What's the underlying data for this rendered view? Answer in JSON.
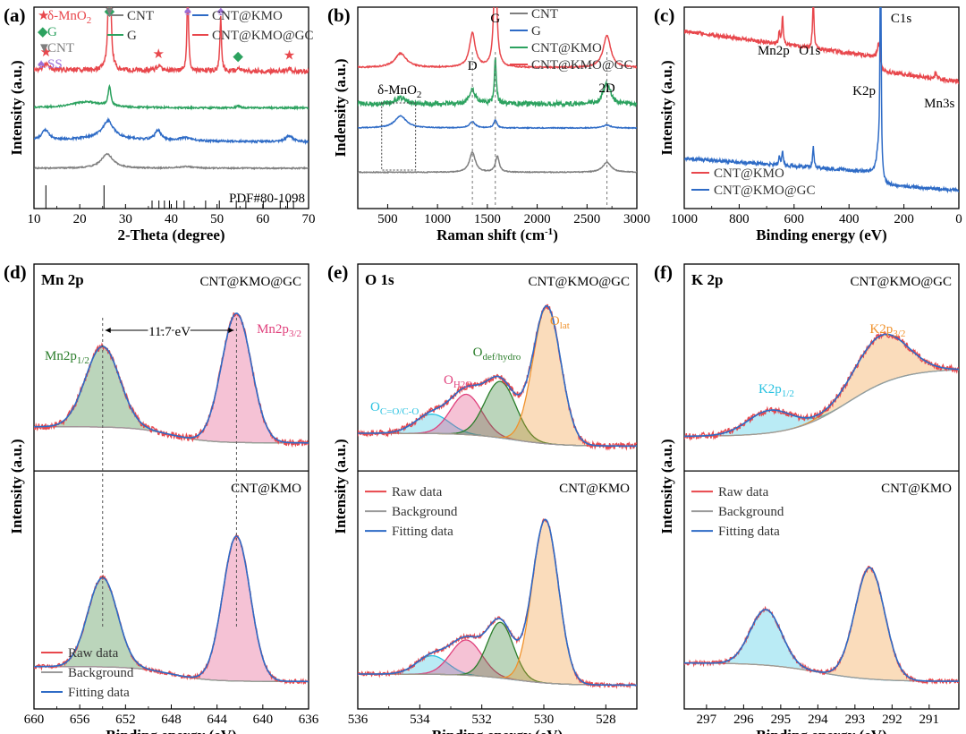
{
  "chart_data": [
    {
      "id": "a",
      "panel_label": "(a)",
      "type": "line",
      "title": "",
      "xlabel": "2-Theta (degree)",
      "ylabel": "Intensity (a.u.)",
      "xlim": [
        10,
        70
      ],
      "xticks": [
        10,
        20,
        30,
        40,
        50,
        60,
        70
      ],
      "legend": [
        {
          "name": "CNT",
          "color": "#7f7f7f"
        },
        {
          "name": "CNT@KMO",
          "color": "#2e6bc6"
        },
        {
          "name": "G",
          "color": "#2ca25f"
        },
        {
          "name": "CNT@KMO@GC",
          "color": "#e8474c"
        }
      ],
      "marker_legend": [
        {
          "symbol": "★",
          "label": "δ-MnO",
          "sub": "2",
          "color": "#e8474c"
        },
        {
          "symbol": "◆",
          "label": "G",
          "sub": "",
          "color": "#2ca25f"
        },
        {
          "symbol": "▼",
          "label": "CNT",
          "sub": "",
          "color": "#7f7f7f"
        },
        {
          "symbol": "♠",
          "label": "SS",
          "sub": "",
          "color": "#9b6fd6"
        }
      ],
      "reference_label": "PDF#80-1098",
      "reference_lines": [
        12.6,
        25.3,
        35.8,
        37.3,
        38.5,
        39.6,
        41.2,
        42.8,
        47.5,
        50.5,
        54.2,
        56.3,
        60.1,
        63.8,
        65.4,
        66.7
      ],
      "peak_markers": [
        {
          "x": 12.6,
          "trace": "CNT@KMO@GC",
          "symbol": "★"
        },
        {
          "x": 26.5,
          "trace": "CNT@KMO@GC",
          "symbol": "◆"
        },
        {
          "x": 26.5,
          "trace": "CNT@KMO@GC",
          "symbol": "▼"
        },
        {
          "x": 37.2,
          "trace": "CNT@KMO@GC",
          "symbol": "★"
        },
        {
          "x": 43.6,
          "trace": "CNT@KMO@GC",
          "symbol": "♠"
        },
        {
          "x": 50.8,
          "trace": "CNT@KMO@GC",
          "symbol": "♠"
        },
        {
          "x": 54.6,
          "trace": "CNT@KMO@GC",
          "symbol": "◆"
        },
        {
          "x": 65.8,
          "trace": "CNT@KMO@GC",
          "symbol": "★"
        }
      ],
      "series": [
        {
          "name": "CNT@KMO@GC",
          "color": "#e8474c",
          "offset": 0.66,
          "baseline": 0.03,
          "slope": -0.02,
          "noise": 0.012,
          "peaks": [
            [
              12.6,
              0.03,
              0.6
            ],
            [
              26.5,
              0.9,
              0.25
            ],
            [
              37.2,
              0.02,
              0.5
            ],
            [
              43.6,
              0.42,
              0.2
            ],
            [
              50.8,
              0.27,
              0.2
            ],
            [
              54.6,
              0.01,
              0.4
            ],
            [
              65.8,
              0.015,
              0.6
            ]
          ]
        },
        {
          "name": "G",
          "color": "#2ca25f",
          "offset": 0.5,
          "baseline": 0.0,
          "slope": 0.0,
          "noise": 0.004,
          "peaks": [
            [
              21.5,
              0.03,
              4.0
            ],
            [
              26.5,
              0.1,
              0.35
            ],
            [
              54.6,
              0.01,
              0.4
            ]
          ]
        },
        {
          "name": "CNT@KMO",
          "color": "#2e6bc6",
          "offset": 0.34,
          "baseline": 0.0,
          "slope": -0.02,
          "noise": 0.005,
          "peaks": [
            [
              12.5,
              0.05,
              0.9
            ],
            [
              26.2,
              0.07,
              1.2
            ],
            [
              25.8,
              0.03,
              4.0
            ],
            [
              37.1,
              0.05,
              0.8
            ],
            [
              43.0,
              0.015,
              1.5
            ],
            [
              65.8,
              0.03,
              1.0
            ]
          ]
        },
        {
          "name": "CNT",
          "color": "#7f7f7f",
          "offset": 0.2,
          "baseline": 0.0,
          "slope": 0.0,
          "noise": 0.003,
          "peaks": [
            [
              26.0,
              0.07,
              1.6
            ],
            [
              43.2,
              0.008,
              2.0
            ]
          ]
        }
      ]
    },
    {
      "id": "b",
      "panel_label": "(b)",
      "type": "line",
      "title": "",
      "xlabel": "Raman shift (cm⁻¹)",
      "ylabel": "Indensity (a.u.)",
      "xlim": [
        200,
        3000
      ],
      "xticks": [
        500,
        1000,
        1500,
        2000,
        2500,
        3000
      ],
      "legend": [
        {
          "name": "CNT",
          "color": "#7f7f7f"
        },
        {
          "name": "G",
          "color": "#2e6bc6"
        },
        {
          "name": "CNT@KMO",
          "color": "#2ca25f"
        },
        {
          "name": "CNT@KMO@GC",
          "color": "#e8474c"
        }
      ],
      "band_labels": [
        {
          "text": "δ-MnO",
          "sub": "2",
          "x": 620
        },
        {
          "text": "D",
          "sub": "",
          "x": 1350
        },
        {
          "text": "G",
          "sub": "",
          "x": 1580
        },
        {
          "text": "2D",
          "sub": "",
          "x": 2700
        }
      ],
      "series": [
        {
          "name": "CNT@KMO@GC",
          "color": "#e8474c",
          "offset": 0.7,
          "baseline": 0.0,
          "slope": 0.0,
          "noise": 0.003,
          "peaks": [
            [
              630,
              0.07,
              70
            ],
            [
              1350,
              0.17,
              35
            ],
            [
              1580,
              0.55,
              18
            ],
            [
              2700,
              0.16,
              45
            ]
          ]
        },
        {
          "name": "CNT@KMO",
          "color": "#2ca25f",
          "offset": 0.52,
          "baseline": 0.0,
          "slope": 0.0,
          "noise": 0.012,
          "peaks": [
            [
              630,
              0.03,
              70
            ],
            [
              1350,
              0.07,
              35
            ],
            [
              1580,
              0.22,
              12
            ],
            [
              2700,
              0.1,
              45
            ]
          ]
        },
        {
          "name": "G",
          "color": "#2e6bc6",
          "offset": 0.4,
          "baseline": 0.0,
          "slope": 0.0,
          "noise": 0.002,
          "peaks": [
            [
              630,
              0.06,
              70
            ],
            [
              1350,
              0.03,
              35
            ],
            [
              1580,
              0.04,
              18
            ],
            [
              2700,
              0.015,
              45
            ]
          ]
        },
        {
          "name": "CNT",
          "color": "#7f7f7f",
          "offset": 0.18,
          "baseline": 0.0,
          "slope": 0.0,
          "noise": 0.002,
          "peaks": [
            [
              1350,
              0.1,
              35
            ],
            [
              1600,
              0.08,
              22
            ],
            [
              2700,
              0.05,
              50
            ]
          ]
        }
      ]
    },
    {
      "id": "c",
      "panel_label": "(c)",
      "type": "line",
      "title": "",
      "xlabel": "Binding energy (eV)",
      "ylabel": "Intensity (a.u.)",
      "xlim": [
        1000,
        0
      ],
      "xticks": [
        1000,
        800,
        600,
        400,
        200,
        0
      ],
      "legend": [
        {
          "name": "CNT@KMO",
          "color": "#e8474c"
        },
        {
          "name": "CNT@KMO@GC",
          "color": "#2e6bc6"
        }
      ],
      "peak_labels": [
        {
          "text": "Mn2p",
          "x": 642
        },
        {
          "text": "O1s",
          "x": 530
        },
        {
          "text": "K2p",
          "x": 293
        },
        {
          "text": "C1s",
          "x": 285
        },
        {
          "text": "Mn3s",
          "x": 84
        }
      ],
      "series": [
        {
          "name": "CNT@KMO",
          "color": "#e8474c",
          "offset": 0.7,
          "baseline": 0.0,
          "slope": 0.18,
          "noise": 0.01,
          "peaks": [
            [
              654,
              0.06,
              3
            ],
            [
              642,
              0.14,
              3
            ],
            [
              530,
              0.25,
              3
            ],
            [
              293,
              0.06,
              4
            ],
            [
              285,
              0.05,
              4
            ],
            [
              84,
              0.03,
              4
            ]
          ]
        },
        {
          "name": "CNT@KMO@GC",
          "color": "#2e6bc6",
          "offset": 0.15,
          "baseline": 0.0,
          "slope": 0.1,
          "noise": 0.008,
          "peaks": [
            [
              654,
              0.04,
              3
            ],
            [
              642,
              0.07,
              3
            ],
            [
              530,
              0.1,
              3
            ],
            [
              295,
              0.08,
              6
            ],
            [
              285,
              1.2,
              2.5
            ]
          ]
        }
      ]
    },
    {
      "id": "d",
      "panel_label": "(d)",
      "type": "line",
      "title": "Mn 2p",
      "xlabel": "Binding energy (eV)",
      "ylabel": "Intensity (a.u.)",
      "xlim": [
        660,
        636
      ],
      "xticks": [
        660,
        656,
        652,
        648,
        644,
        640,
        636
      ],
      "legend": [
        {
          "name": "Raw data",
          "color": "#e8474c"
        },
        {
          "name": "Background",
          "color": "#9a9a9a"
        },
        {
          "name": "Fitting data",
          "color": "#2e6bc6"
        }
      ],
      "subpanels": [
        {
          "sample": "CNT@KMO@GC",
          "peak_labels": [
            {
              "text": "Mn2p",
              "sub": "1/2",
              "color": "#2a7d2a"
            },
            {
              "text": "Mn2p",
              "sub": "3/2",
              "color": "#e0407c"
            }
          ],
          "splitting_label": "11.7 eV",
          "components": [
            {
              "name": "Mn2p1/2",
              "center": 654.0,
              "height": 0.5,
              "width": 1.5,
              "color": "#2a7d2a"
            },
            {
              "name": "Mn2p3/2",
              "center": 642.3,
              "height": 0.8,
              "width": 1.3,
              "color": "#e0407c"
            }
          ],
          "background": {
            "left": 0.12,
            "right": 0.02,
            "step_at": 648
          }
        },
        {
          "sample": "CNT@KMO",
          "peak_labels": [],
          "components": [
            {
              "name": "Mn2p1/2",
              "center": 654.0,
              "height": 0.48,
              "width": 1.3,
              "color": "#2a7d2a"
            },
            {
              "name": "Mn2p3/2",
              "center": 642.3,
              "height": 0.78,
              "width": 1.2,
              "color": "#e0407c"
            }
          ],
          "background": {
            "left": 0.1,
            "right": 0.02,
            "step_at": 648
          }
        }
      ]
    },
    {
      "id": "e",
      "panel_label": "(e)",
      "type": "line",
      "title": "O 1s",
      "xlabel": "Binding energy (eV)",
      "ylabel": "Intensity (a.u.)",
      "xlim": [
        536,
        527
      ],
      "xticks": [
        536,
        534,
        532,
        530,
        528
      ],
      "legend": [
        {
          "name": "Raw data",
          "color": "#e8474c"
        },
        {
          "name": "Background",
          "color": "#9a9a9a"
        },
        {
          "name": "Fitting data",
          "color": "#2e6bc6"
        }
      ],
      "subpanels": [
        {
          "sample": "CNT@KMO@GC",
          "peak_labels": [
            {
              "text": "O",
              "sub": "lat",
              "color": "#f0922c"
            },
            {
              "text": "O",
              "sub": "def/hydro",
              "color": "#2a7d2a"
            },
            {
              "text": "O",
              "sub": "H2O",
              "color": "#e0407c"
            },
            {
              "text": "O",
              "sub": "C=O/C-O",
              "color": "#27c1e0"
            }
          ],
          "components": [
            {
              "name": "C=O/C-O",
              "center": 533.6,
              "height": 0.12,
              "width": 0.55,
              "color": "#27c1e0"
            },
            {
              "name": "H2O",
              "center": 532.5,
              "height": 0.25,
              "width": 0.5,
              "color": "#e0407c"
            },
            {
              "name": "def/hydro",
              "center": 531.4,
              "height": 0.35,
              "width": 0.5,
              "color": "#2a7d2a"
            },
            {
              "name": "lat",
              "center": 529.9,
              "height": 0.85,
              "width": 0.45,
              "color": "#f0922c"
            }
          ],
          "background": {
            "left": 0.08,
            "right": 0.0,
            "step_at": 531
          }
        },
        {
          "sample": "CNT@KMO",
          "peak_labels": [],
          "components": [
            {
              "name": "C=O/C-O",
              "center": 533.6,
              "height": 0.1,
              "width": 0.5,
              "color": "#27c1e0"
            },
            {
              "name": "H2O",
              "center": 532.5,
              "height": 0.19,
              "width": 0.5,
              "color": "#e0407c"
            },
            {
              "name": "def/hydro",
              "center": 531.4,
              "height": 0.3,
              "width": 0.42,
              "color": "#2a7d2a"
            },
            {
              "name": "lat",
              "center": 529.95,
              "height": 0.88,
              "width": 0.42,
              "color": "#f0922c"
            }
          ],
          "background": {
            "left": 0.06,
            "right": 0.0,
            "step_at": 531
          }
        }
      ]
    },
    {
      "id": "f",
      "panel_label": "(f)",
      "type": "line",
      "title": "K 2p",
      "xlabel": "Binding energy (eV)",
      "ylabel": "Intensity (a.u.)",
      "xlim": [
        297.6,
        290.2
      ],
      "xticks": [
        297,
        296,
        295,
        294,
        293,
        292,
        291
      ],
      "legend": [
        {
          "name": "Raw data",
          "color": "#e8474c"
        },
        {
          "name": "Background",
          "color": "#9a9a9a"
        },
        {
          "name": "Fitting data",
          "color": "#2e6bc6"
        }
      ],
      "subpanels": [
        {
          "sample": "CNT@KMO@GC",
          "peak_labels": [
            {
              "text": "K2p",
              "sub": "1/2",
              "color": "#27c1e0"
            },
            {
              "text": "K2p",
              "sub": "3/2",
              "color": "#f0922c"
            }
          ],
          "components": [
            {
              "name": "K2p1/2",
              "center": 295.3,
              "height": 0.14,
              "width": 0.6,
              "color": "#27c1e0"
            },
            {
              "name": "K2p3/2",
              "center": 292.3,
              "height": 0.3,
              "width": 0.7,
              "color": "#f0922c"
            }
          ],
          "background": {
            "left": 0.06,
            "right": 0.48,
            "step_at": 293.2
          }
        },
        {
          "sample": "CNT@KMO",
          "peak_labels": [],
          "components": [
            {
              "name": "K2p1/2",
              "center": 295.4,
              "height": 0.3,
              "width": 0.42,
              "color": "#27c1e0"
            },
            {
              "name": "K2p3/2",
              "center": 292.6,
              "height": 0.6,
              "width": 0.4,
              "color": "#f0922c"
            }
          ],
          "background": {
            "left": 0.12,
            "right": 0.02,
            "step_at": 294
          }
        }
      ]
    }
  ]
}
